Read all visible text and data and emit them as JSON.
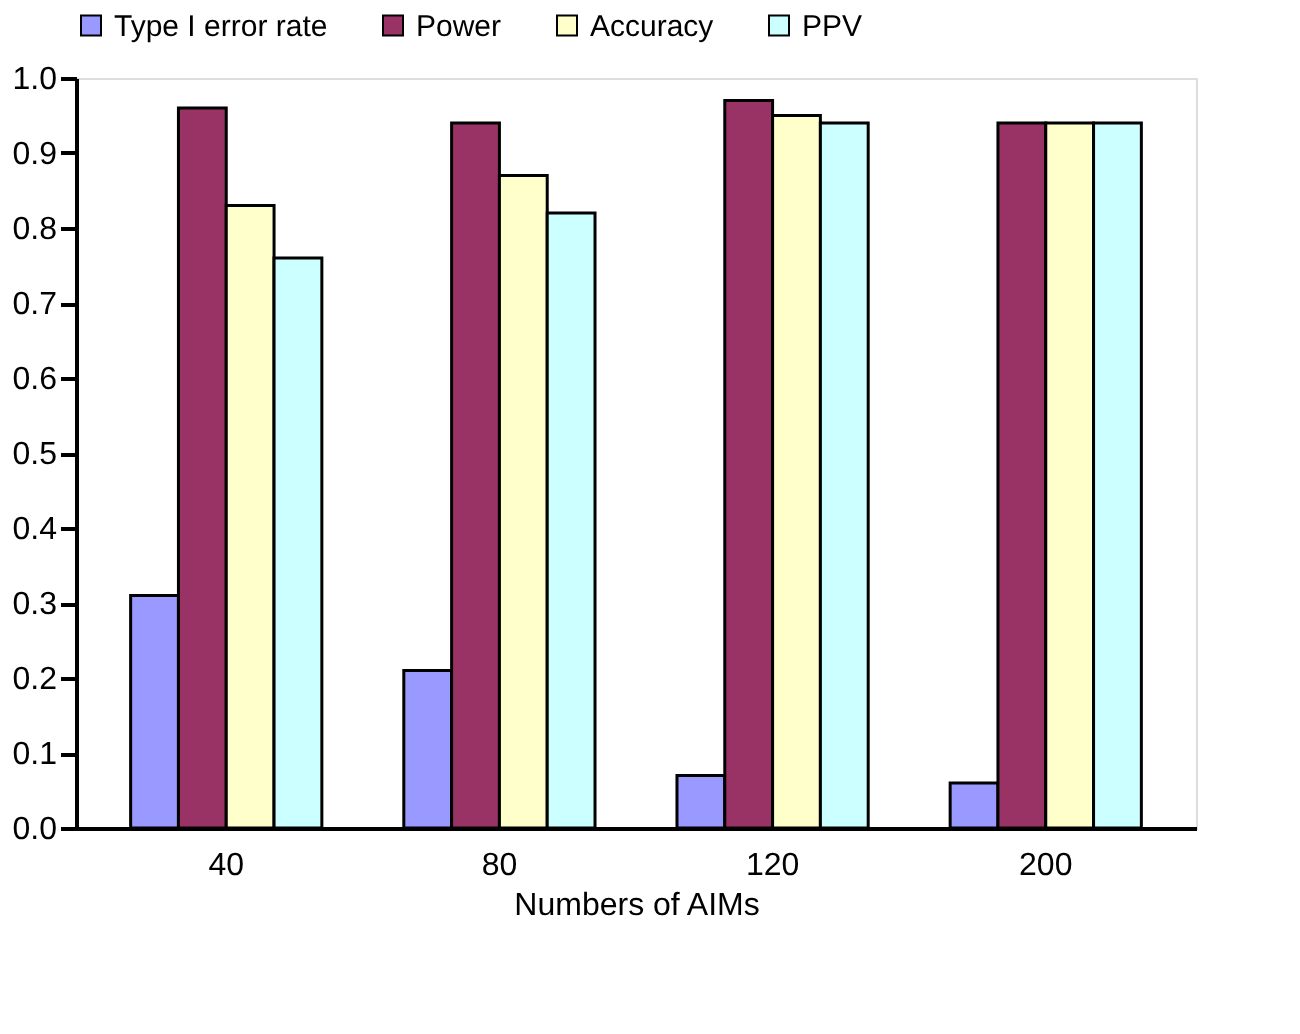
{
  "chart_data": {
    "type": "bar",
    "xlabel": "Numbers of AIMs",
    "categories": [
      "40",
      "80",
      "120",
      "200"
    ],
    "series": [
      {
        "name": "Type I error rate",
        "color": "#9999ff",
        "values": [
          0.31,
          0.21,
          0.07,
          0.06
        ]
      },
      {
        "name": "Power",
        "color": "#993366",
        "values": [
          0.96,
          0.94,
          0.97,
          0.94
        ]
      },
      {
        "name": "Accuracy",
        "color": "#ffffcc",
        "values": [
          0.83,
          0.87,
          0.95,
          0.94
        ]
      },
      {
        "name": "PPV",
        "color": "#ccffff",
        "values": [
          0.76,
          0.82,
          0.94,
          0.94
        ]
      }
    ],
    "ylim": [
      0,
      1
    ],
    "yticks": [
      {
        "value": 0,
        "label": "0.0"
      },
      {
        "value": 0.1,
        "label": "0.1"
      },
      {
        "value": 0.2,
        "label": "0.2"
      },
      {
        "value": 0.3,
        "label": "0.3"
      },
      {
        "value": 0.4,
        "label": "0.4"
      },
      {
        "value": 0.5,
        "label": "0.5"
      },
      {
        "value": 0.6,
        "label": "0.6"
      },
      {
        "value": 0.7,
        "label": "0.7"
      },
      {
        "value": 0.8,
        "label": "0.8"
      },
      {
        "value": 0.9,
        "label": "0.9"
      },
      {
        "value": 1,
        "label": "1.0"
      }
    ],
    "grid": false,
    "legend": "top"
  }
}
